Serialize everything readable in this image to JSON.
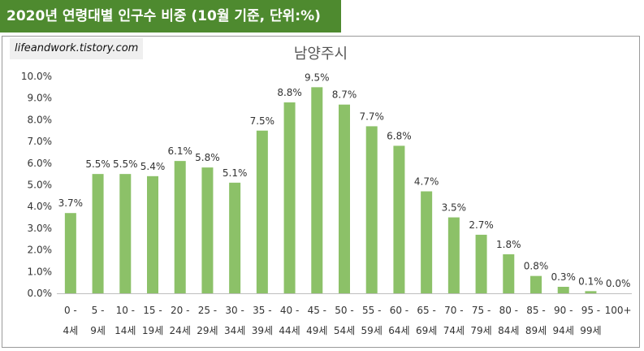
{
  "header": {
    "title": "2020년 연령대별 인구수 비중 (10월 기준, 단위:%)"
  },
  "watermark": "lifeandwork.tistory.com",
  "colors": {
    "header_bg": "#4e8a2f",
    "bar": "#8cc168",
    "axis": "#bfbfbf"
  },
  "chart_data": {
    "type": "bar",
    "title": "남양주시",
    "xlabel": "",
    "ylabel": "",
    "ylim": [
      0,
      10
    ],
    "yticks": [
      "0.0%",
      "1.0%",
      "2.0%",
      "3.0%",
      "4.0%",
      "5.0%",
      "6.0%",
      "7.0%",
      "8.0%",
      "9.0%",
      "10.0%"
    ],
    "grid": false,
    "categories": [
      [
        "0 -",
        "4세"
      ],
      [
        "5 -",
        "9세"
      ],
      [
        "10 -",
        "14세"
      ],
      [
        "15 -",
        "19세"
      ],
      [
        "20 -",
        "24세"
      ],
      [
        "25 -",
        "29세"
      ],
      [
        "30 -",
        "34세"
      ],
      [
        "35 -",
        "39세"
      ],
      [
        "40 -",
        "44세"
      ],
      [
        "45 -",
        "49세"
      ],
      [
        "50 -",
        "54세"
      ],
      [
        "55 -",
        "59세"
      ],
      [
        "60 -",
        "64세"
      ],
      [
        "65 -",
        "69세"
      ],
      [
        "70 -",
        "74세"
      ],
      [
        "75 -",
        "79세"
      ],
      [
        "80 -",
        "84세"
      ],
      [
        "85 -",
        "89세"
      ],
      [
        "90 -",
        "94세"
      ],
      [
        "95 -",
        "99세"
      ],
      [
        "100+",
        ""
      ]
    ],
    "values": [
      3.7,
      5.5,
      5.5,
      5.4,
      6.1,
      5.8,
      5.1,
      7.5,
      8.8,
      9.5,
      8.7,
      7.7,
      6.8,
      4.7,
      3.5,
      2.7,
      1.8,
      0.8,
      0.3,
      0.1,
      0.0
    ],
    "data_labels": [
      "3.7%",
      "5.5%",
      "5.5%",
      "5.4%",
      "6.1%",
      "5.8%",
      "5.1%",
      "7.5%",
      "8.8%",
      "9.5%",
      "8.7%",
      "7.7%",
      "6.8%",
      "4.7%",
      "3.5%",
      "2.7%",
      "1.8%",
      "0.8%",
      "0.3%",
      "0.1%",
      "0.0%"
    ]
  }
}
